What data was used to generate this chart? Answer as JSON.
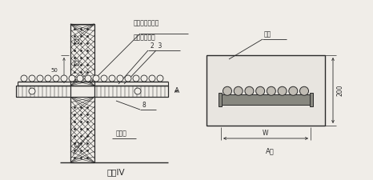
{
  "bg_color": "#f0ede8",
  "line_color": "#2a2a2a",
  "fill_color": "#d8d4cc",
  "title": "方案IV",
  "label_guankou": "管口内封堵防火",
  "label_duliao": "堵料或石棉绳",
  "label_qiang": "墙钢",
  "label_hunningtu": "混凝土",
  "label_50": "50",
  "label_2_3": "2  3",
  "label_8": "8",
  "label_A": "A",
  "label_200": "200",
  "label_W": "W",
  "label_Axiang": "A向",
  "font_size_small": 5.5,
  "font_size_title": 7.5
}
